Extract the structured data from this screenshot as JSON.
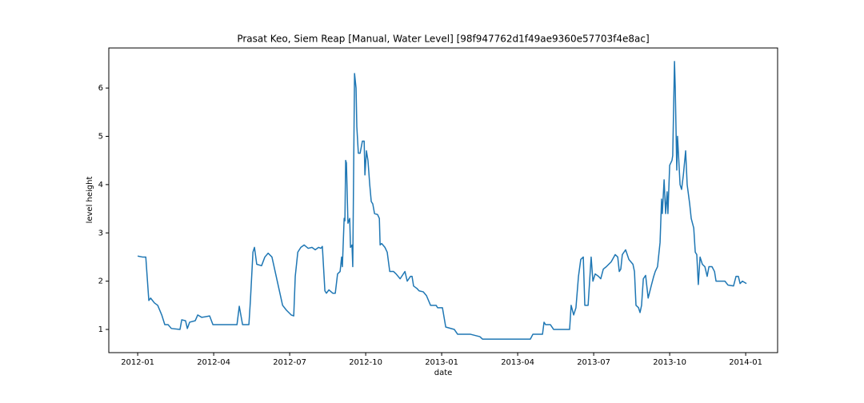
{
  "chart_data": {
    "type": "line",
    "title": "Prasat Keo, Siem Reap [Manual, Water Level] [98f947762d1f49ae9360e57703f4e8ac]",
    "x_label": "date",
    "y_label": "level height",
    "x": [
      0,
      0.19,
      0.32,
      0.44,
      0.51,
      0.66,
      0.79,
      0.95,
      1.07,
      1.2,
      1.33,
      1.67,
      1.74,
      1.89,
      1.96,
      2.05,
      2.27,
      2.37,
      2.53,
      2.84,
      2.97,
      3.92,
      4.01,
      4.14,
      4.39,
      4.45,
      4.55,
      4.61,
      4.7,
      4.89,
      5.02,
      5.15,
      5.3,
      5.72,
      5.87,
      6.06,
      6.16,
      6.22,
      6.32,
      6.44,
      6.57,
      6.73,
      6.88,
      7.01,
      7.14,
      7.23,
      7.29,
      7.39,
      7.45,
      7.55,
      7.7,
      7.8,
      7.89,
      7.99,
      8.05,
      8.08,
      8.15,
      8.18,
      8.21,
      8.24,
      8.3,
      8.37,
      8.4,
      8.46,
      8.49,
      8.56,
      8.62,
      8.65,
      8.71,
      8.78,
      8.87,
      8.94,
      8.97,
      9.03,
      9.09,
      9.16,
      9.22,
      9.28,
      9.35,
      9.47,
      9.54,
      9.57,
      9.63,
      9.76,
      9.85,
      9.95,
      10.1,
      10.2,
      10.36,
      10.55,
      10.64,
      10.77,
      10.83,
      10.89,
      11.02,
      11.11,
      11.27,
      11.4,
      11.56,
      11.78,
      11.84,
      12.03,
      12.16,
      12.5,
      12.63,
      13.14,
      13.51,
      13.61,
      15.5,
      15.6,
      15.98,
      16.04,
      16.1,
      16.29,
      16.42,
      17.05,
      17.11,
      17.21,
      17.3,
      17.4,
      17.49,
      17.59,
      17.65,
      17.78,
      17.84,
      17.9,
      17.97,
      18.06,
      18.19,
      18.28,
      18.38,
      18.5,
      18.69,
      18.85,
      18.95,
      19.01,
      19.07,
      19.13,
      19.26,
      19.39,
      19.55,
      19.61,
      19.67,
      19.77,
      19.83,
      19.89,
      19.96,
      20.05,
      20.15,
      20.27,
      20.37,
      20.43,
      20.52,
      20.62,
      20.68,
      20.71,
      20.78,
      20.84,
      20.9,
      20.93,
      21.0,
      21.09,
      21.12,
      21.19,
      21.22,
      21.28,
      21.31,
      21.41,
      21.47,
      21.54,
      21.63,
      21.69,
      21.79,
      21.85,
      21.95,
      22.01,
      22.07,
      22.13,
      22.2,
      22.29,
      22.39,
      22.48,
      22.55,
      22.67,
      22.77,
      22.83,
      23.18,
      23.3,
      23.52,
      23.62,
      23.71,
      23.78,
      23.87,
      24.03
    ],
    "series": [
      {
        "color": "#1f77b4",
        "values": [
          2.52,
          2.5,
          2.5,
          1.6,
          1.65,
          1.55,
          1.5,
          1.3,
          1.1,
          1.1,
          1.02,
          1.0,
          1.2,
          1.18,
          1.02,
          1.15,
          1.18,
          1.3,
          1.25,
          1.28,
          1.1,
          1.1,
          1.48,
          1.1,
          1.1,
          1.6,
          2.6,
          2.7,
          2.35,
          2.32,
          2.5,
          2.58,
          2.5,
          1.5,
          1.4,
          1.3,
          1.28,
          2.1,
          2.6,
          2.7,
          2.75,
          2.68,
          2.7,
          2.65,
          2.7,
          2.68,
          2.72,
          1.8,
          1.75,
          1.82,
          1.75,
          1.75,
          2.15,
          2.2,
          2.5,
          2.3,
          3.3,
          3.25,
          4.5,
          4.45,
          3.2,
          3.3,
          2.7,
          2.75,
          2.3,
          6.3,
          6.0,
          5.2,
          4.65,
          4.65,
          4.9,
          4.9,
          4.2,
          4.7,
          4.5,
          4.0,
          3.65,
          3.6,
          3.4,
          3.38,
          3.3,
          2.75,
          2.78,
          2.7,
          2.6,
          2.2,
          2.2,
          2.15,
          2.05,
          2.2,
          2.0,
          2.1,
          2.1,
          1.9,
          1.85,
          1.8,
          1.78,
          1.7,
          1.5,
          1.5,
          1.45,
          1.45,
          1.05,
          1.0,
          0.9,
          0.9,
          0.85,
          0.8,
          0.8,
          0.9,
          0.9,
          1.15,
          1.1,
          1.1,
          1.0,
          1.0,
          1.5,
          1.3,
          1.45,
          2.1,
          2.45,
          2.5,
          1.5,
          1.5,
          2.0,
          2.5,
          2.0,
          2.15,
          2.1,
          2.05,
          2.25,
          2.3,
          2.4,
          2.55,
          2.5,
          2.2,
          2.25,
          2.55,
          2.65,
          2.45,
          2.35,
          2.2,
          1.5,
          1.45,
          1.35,
          1.5,
          2.05,
          2.12,
          1.65,
          1.9,
          2.1,
          2.2,
          2.3,
          2.8,
          3.7,
          3.4,
          4.1,
          3.4,
          3.85,
          3.4,
          4.4,
          4.5,
          4.6,
          6.55,
          6.0,
          4.3,
          5.0,
          4.0,
          3.9,
          4.2,
          4.7,
          4.0,
          3.6,
          3.3,
          3.1,
          2.6,
          2.55,
          1.93,
          2.5,
          2.35,
          2.3,
          2.1,
          2.3,
          2.3,
          2.2,
          2.0,
          2.0,
          1.92,
          1.9,
          2.1,
          2.1,
          1.95,
          2.0,
          1.95
        ]
      }
    ],
    "xlim": [
      -1.14,
      25.26
    ],
    "xticks": [
      {
        "value": 0,
        "label": "2012-01"
      },
      {
        "value": 3,
        "label": "2012-04"
      },
      {
        "value": 6,
        "label": "2012-07"
      },
      {
        "value": 9,
        "label": "2012-10"
      },
      {
        "value": 12,
        "label": "2013-01"
      },
      {
        "value": 15,
        "label": "2013-04"
      },
      {
        "value": 18,
        "label": "2013-07"
      },
      {
        "value": 21,
        "label": "2013-10"
      },
      {
        "value": 24,
        "label": "2014-01"
      }
    ],
    "ylim": [
      0.52,
      6.83
    ],
    "yticks": [
      1,
      2,
      3,
      4,
      5,
      6
    ],
    "grid": false
  }
}
